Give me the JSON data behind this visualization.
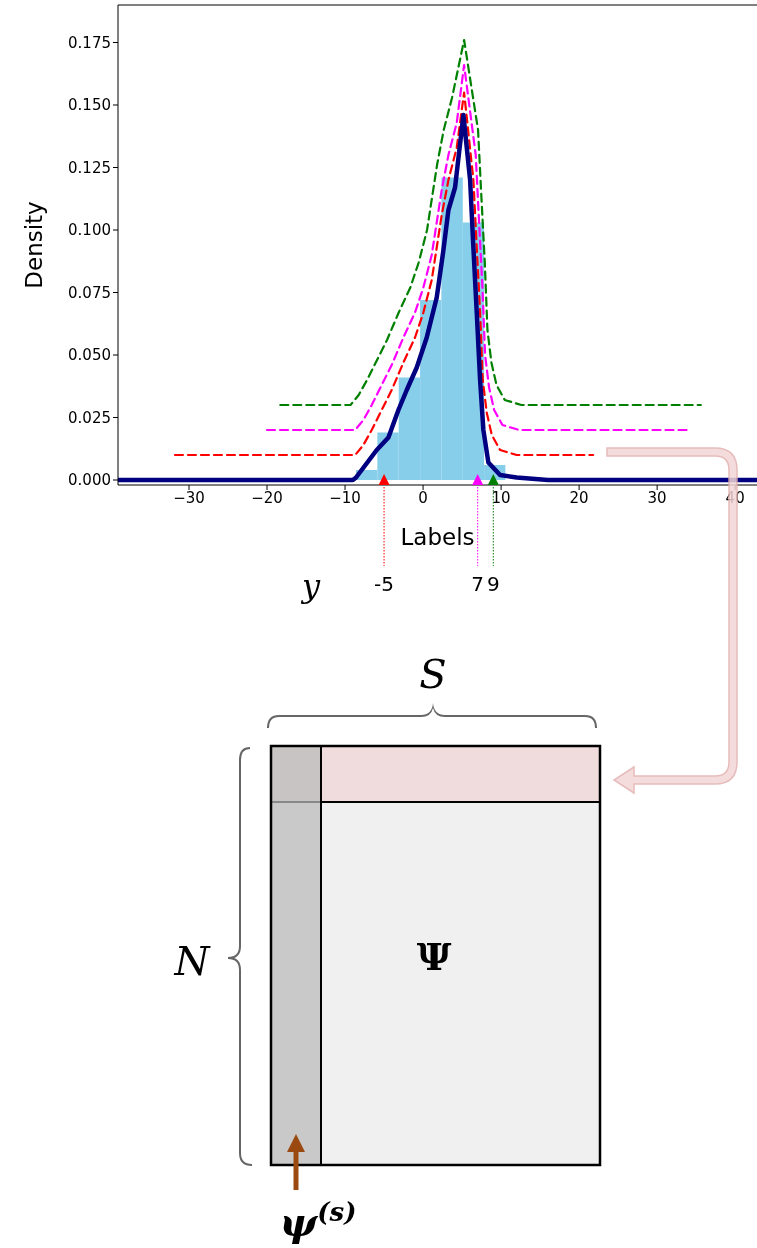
{
  "chart_data": {
    "type": "histogram",
    "xlabel": "Labels",
    "ylabel": "Density",
    "bins": [
      -8.6,
      -5.86,
      -3.12,
      -0.38,
      2.35,
      5.09,
      7.82,
      10.55
    ],
    "values": [
      0.004,
      0.019,
      0.041,
      0.072,
      0.121,
      0.103,
      0.006
    ],
    "color": "#87ceeb",
    "xlim": [
      -39.1,
      42.8
    ],
    "ylim": [
      -0.002,
      0.19
    ],
    "xticks": [
      {
        "value": -30,
        "label": "−30"
      },
      {
        "value": -20,
        "label": "−20"
      },
      {
        "value": -10,
        "label": "−10"
      },
      0,
      10,
      20,
      30,
      40
    ],
    "yticks": [
      {
        "value": 0,
        "label": "0.000"
      },
      0.025,
      {
        "value": 0.05,
        "label": "0.050"
      },
      0.075,
      {
        "value": 0.1,
        "label": "0.100"
      },
      0.125,
      {
        "value": 0.15,
        "label": "0.150"
      },
      0.175
    ],
    "series": [
      {
        "type": "line",
        "color": "#ff0000",
        "line_style": "dashed",
        "x": [
          -31.8,
          -8.7,
          -7.65,
          -6.58,
          -5.3,
          -4.02,
          -2.52,
          -1.03,
          0.04,
          1.11,
          1.75,
          2.39,
          3.25,
          4.32,
          5.26,
          6.45,
          6.88,
          7.31,
          7.65,
          8.16,
          8.81,
          9.87,
          12.0,
          21.8
        ],
        "values": [
          0.01,
          0.01,
          0.014,
          0.02,
          0.028,
          0.036,
          0.047,
          0.057,
          0.067,
          0.08,
          0.093,
          0.106,
          0.12,
          0.133,
          0.155,
          0.12,
          0.093,
          0.067,
          0.04,
          0.027,
          0.018,
          0.012,
          0.01,
          0.01
        ]
      },
      {
        "type": "line",
        "color": "#ff00ff",
        "line_style": "dashed",
        "x": [
          -20,
          -8.7,
          -7.65,
          -6.58,
          -5.3,
          -4.02,
          -2.52,
          -1.03,
          0.04,
          1.11,
          1.75,
          2.39,
          3.25,
          4.32,
          5.26,
          6.75,
          7.18,
          7.61,
          7.95,
          8.46,
          9.11,
          10.17,
          12.3,
          34.1
        ],
        "values": [
          0.02,
          0.02,
          0.024,
          0.03,
          0.038,
          0.046,
          0.057,
          0.067,
          0.077,
          0.09,
          0.103,
          0.116,
          0.13,
          0.143,
          0.166,
          0.13,
          0.103,
          0.077,
          0.05,
          0.037,
          0.028,
          0.022,
          0.02,
          0.02
        ]
      },
      {
        "type": "line",
        "color": "#008000",
        "line_style": "dashed",
        "x": [
          -18.3,
          -9.3,
          -8.25,
          -7.18,
          -5.9,
          -4.62,
          -3.12,
          -1.63,
          -0.56,
          0.51,
          1.15,
          1.79,
          2.65,
          3.72,
          5.26,
          7.05,
          7.48,
          7.91,
          8.25,
          8.76,
          9.41,
          10.47,
          12.6,
          35.6
        ],
        "values": [
          0.03,
          0.03,
          0.034,
          0.04,
          0.048,
          0.056,
          0.067,
          0.077,
          0.087,
          0.1,
          0.113,
          0.126,
          0.14,
          0.153,
          0.176,
          0.14,
          0.113,
          0.087,
          0.06,
          0.047,
          0.038,
          0.032,
          0.03,
          0.03
        ]
      },
      {
        "type": "line",
        "color": "#000080",
        "line_style": "solid",
        "x": [
          -39.1,
          -9.0,
          -8.59,
          -5.94,
          -4.44,
          -3.16,
          -2.09,
          -0.81,
          0.47,
          1.75,
          2.61,
          3.25,
          4.1,
          5.17,
          6.03,
          6.45,
          6.88,
          7.31,
          7.73,
          8.37,
          9.87,
          12.0,
          16.0,
          42.8
        ],
        "values": [
          0,
          0,
          0.001,
          0.012,
          0.017,
          0.028,
          0.036,
          0.045,
          0.057,
          0.073,
          0.092,
          0.108,
          0.117,
          0.146,
          0.12,
          0.093,
          0.067,
          0.04,
          0.02,
          0.007,
          0.002,
          0.001,
          0,
          0
        ]
      },
      {
        "type": "scatter",
        "color": "#ff0000",
        "marker": "triangle",
        "x": [
          -5
        ],
        "values": [
          0
        ]
      },
      {
        "type": "scatter",
        "color": "#ff00ff",
        "marker": "triangle",
        "x": [
          7
        ],
        "values": [
          0
        ]
      },
      {
        "type": "scatter",
        "color": "#008000",
        "marker": "triangle",
        "x": [
          9
        ],
        "values": [
          0
        ]
      }
    ],
    "annotations": [
      "y",
      {
        "text": "-5",
        "x": -5,
        "y": 0
      },
      {
        "text": "7",
        "x": 7,
        "y": 0
      },
      {
        "text": "9",
        "x": 9,
        "y": 0
      },
      "S",
      "N",
      "Ψ",
      "ψ$^{(s)}$"
    ]
  }
}
